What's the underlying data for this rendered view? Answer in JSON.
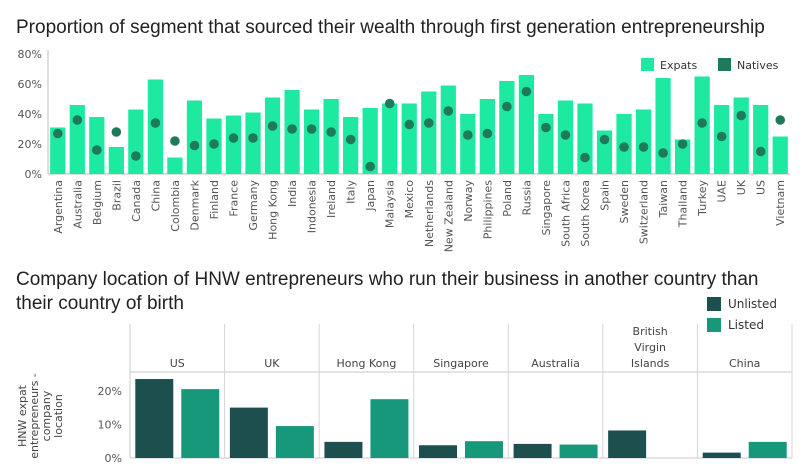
{
  "colors": {
    "expats": "#1de9a0",
    "natives": "#1f7a5c",
    "unlisted": "#1e4f4f",
    "listed": "#17987a"
  },
  "chart_data": [
    {
      "type": "bar",
      "title": "Proportion of segment that sourced their wealth through first generation entrepreneurship",
      "ylim": [
        0,
        80
      ],
      "yticks": [
        "0%",
        "20%",
        "40%",
        "60%",
        "80%"
      ],
      "ytick_values": [
        0,
        20,
        40,
        60,
        80
      ],
      "legend": [
        "Expats",
        "Natives"
      ],
      "legend_position": "top-right",
      "categories": [
        "Argentina",
        "Australia",
        "Belgium",
        "Brazil",
        "Canada",
        "China",
        "Colombia",
        "Denmark",
        "Finland",
        "France",
        "Germany",
        "Hong Kong",
        "India",
        "Indonesia",
        "Ireland",
        "Italy",
        "Japan",
        "Malaysia",
        "Mexico",
        "Netherlands",
        "New Zealand",
        "Norway",
        "Philippines",
        "Poland",
        "Russia",
        "Singapore",
        "South Africa",
        "South Korea",
        "Spain",
        "Sweden",
        "Switzerland",
        "Taiwan",
        "Thailand",
        "Turkey",
        "UAE",
        "UK",
        "US",
        "Vietnam"
      ],
      "series": [
        {
          "name": "Expats",
          "type": "bar",
          "values": [
            31,
            46,
            38,
            18,
            43,
            63,
            11,
            49,
            37,
            39,
            41,
            51,
            56,
            43,
            50,
            38,
            44,
            47,
            47,
            55,
            59,
            40,
            50,
            62,
            66,
            40,
            49,
            47,
            29,
            40,
            43,
            64,
            23,
            65,
            46,
            51,
            46,
            25
          ]
        },
        {
          "name": "Natives",
          "type": "scatter",
          "values": [
            27,
            36,
            16,
            28,
            12,
            34,
            22,
            19,
            20,
            24,
            24,
            32,
            30,
            30,
            28,
            23,
            5,
            47,
            33,
            34,
            42,
            26,
            27,
            45,
            55,
            31,
            26,
            11,
            23,
            18,
            18,
            14,
            20,
            34,
            25,
            39,
            15,
            36
          ]
        }
      ]
    },
    {
      "type": "bar",
      "title": "Company location of HNW entrepreneurs who run their business in another country than their country of birth",
      "ylabel": "HNW expat entrepreneurs - company location",
      "ylim": [
        0,
        25
      ],
      "yticks": [
        "0%",
        "10%",
        "20%"
      ],
      "ytick_values": [
        0,
        10,
        20
      ],
      "legend": [
        "Unlisted",
        "Listed"
      ],
      "legend_position": "top-right",
      "categories": [
        "US",
        "UK",
        "Hong Kong",
        "Singapore",
        "Australia",
        "British Virgin Islands",
        "China"
      ],
      "category_label_lines": [
        [
          "US"
        ],
        [
          "UK"
        ],
        [
          "Hong Kong"
        ],
        [
          "Singapore"
        ],
        [
          "Australia"
        ],
        [
          "British",
          "Virgin",
          "Islands"
        ],
        [
          "China"
        ]
      ],
      "series": [
        {
          "name": "Unlisted",
          "values": [
            23.5,
            15.0,
            4.8,
            3.8,
            4.2,
            8.2,
            1.6
          ]
        },
        {
          "name": "Listed",
          "values": [
            20.5,
            9.5,
            17.5,
            5.0,
            4.0,
            0,
            4.8
          ]
        }
      ]
    }
  ]
}
